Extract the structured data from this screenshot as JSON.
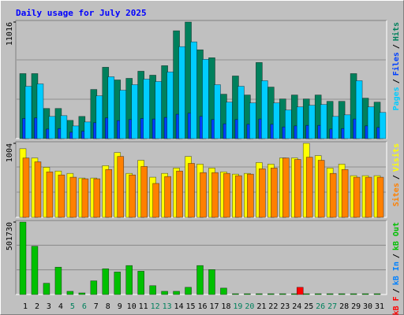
{
  "title": "Daily usage for July 2025",
  "chart_data": [
    {
      "type": "bar",
      "ylim": [
        0,
        11016
      ],
      "yticks": [
        11016
      ],
      "legend_separator": "/",
      "series": [
        {
          "name": "Hits",
          "color": "#00805c",
          "values": [
            6145,
            6145,
            2848,
            2848,
            1724,
            2098,
            4646,
            6745,
            5546,
            5696,
            6370,
            5995,
            6894,
            10192,
            11016,
            8393,
            7644,
            4197,
            5920,
            4122,
            7194,
            4871,
            3747,
            4122,
            3747,
            4122,
            3522,
            3522,
            6145,
            3822,
            3447
          ]
        },
        {
          "name": "Files",
          "color": "#0040ff",
          "values": [
            1900,
            1950,
            900,
            950,
            600,
            700,
            1500,
            1950,
            1700,
            1800,
            1900,
            1850,
            2000,
            2300,
            2400,
            2100,
            1800,
            1400,
            1800,
            1350,
            1850,
            1350,
            1100,
            1200,
            1250,
            1250,
            900,
            950,
            1850,
            1200,
            1050
          ]
        },
        {
          "name": "Pages",
          "color": "#00ccff",
          "values": [
            4946,
            5171,
            2098,
            2173,
            1199,
            1574,
            4047,
            5845,
            4571,
            5096,
            5621,
            5396,
            6295,
            8693,
            9143,
            7494,
            5096,
            3447,
            4946,
            3372,
            5471,
            3372,
            2698,
            2998,
            3147,
            3222,
            2098,
            2248,
            5471,
            2998,
            2473
          ]
        }
      ]
    },
    {
      "type": "bar",
      "ylim": [
        0,
        1004
      ],
      "yticks": [
        1004
      ],
      "legend_separator": "/",
      "series": [
        {
          "name": "Visits",
          "color": "#ffff00",
          "values": [
            931,
            805,
            680,
            628,
            596,
            533,
            533,
            701,
            879,
            596,
            774,
            544,
            596,
            669,
            826,
            722,
            669,
            617,
            586,
            596,
            743,
            722,
            805,
            805,
            1004,
            837,
            669,
            722,
            565,
            565,
            565
          ]
        },
        {
          "name": "Sites",
          "color": "#ff8000",
          "values": [
            805,
            753,
            617,
            575,
            544,
            523,
            523,
            649,
            826,
            575,
            690,
            460,
            554,
            628,
            732,
            607,
            607,
            596,
            565,
            586,
            659,
            669,
            805,
            785,
            816,
            774,
            596,
            649,
            544,
            544,
            544
          ]
        }
      ]
    },
    {
      "type": "bar",
      "ylim": [
        0,
        501730
      ],
      "yticks": [
        501730
      ],
      "legend_separator": "/",
      "categories": [
        "1",
        "2",
        "3",
        "4",
        "5",
        "6",
        "7",
        "8",
        "9",
        "10",
        "11",
        "12",
        "13",
        "14",
        "15",
        "16",
        "17",
        "18",
        "19",
        "20",
        "21",
        "22",
        "23",
        "24",
        "25",
        "26",
        "27",
        "28",
        "29",
        "30",
        "31"
      ],
      "category_colors": [
        "#000000",
        "#000000",
        "#000000",
        "#000000",
        "#00805c",
        "#00805c",
        "#000000",
        "#000000",
        "#000000",
        "#000000",
        "#000000",
        "#00805c",
        "#00805c",
        "#000000",
        "#000000",
        "#000000",
        "#000000",
        "#000000",
        "#00805c",
        "#00805c",
        "#000000",
        "#000000",
        "#000000",
        "#000000",
        "#000000",
        "#00805c",
        "#00805c",
        "#000000",
        "#000000",
        "#000000",
        "#000000"
      ],
      "series": [
        {
          "name": "kB Out",
          "color": "#00c000",
          "values": [
            501730,
            334500,
            78050,
            189550,
            22300,
            11150,
            94775,
            178400,
            156100,
            200700,
            161675,
            61325,
            22300,
            22300,
            50175,
            200700,
            172825,
            44600,
            5575,
            5575,
            5575,
            5575,
            5575,
            5575,
            5575,
            5575,
            5575,
            5575,
            5575,
            5575,
            5575
          ]
        },
        {
          "name": "kB In",
          "color": "#0080ff",
          "values": [
            0,
            0,
            0,
            0,
            0,
            0,
            0,
            0,
            0,
            0,
            0,
            0,
            0,
            0,
            0,
            0,
            0,
            0,
            0,
            0,
            0,
            0,
            0,
            0,
            0,
            0,
            0,
            0,
            0,
            0,
            0
          ]
        },
        {
          "name": "kB F",
          "color": "#ff0000",
          "values": [
            0,
            0,
            0,
            0,
            0,
            0,
            0,
            0,
            0,
            0,
            0,
            0,
            0,
            0,
            0,
            0,
            0,
            0,
            0,
            0,
            0,
            0,
            0,
            50175,
            0,
            0,
            0,
            0,
            0,
            0,
            0
          ]
        }
      ]
    }
  ]
}
